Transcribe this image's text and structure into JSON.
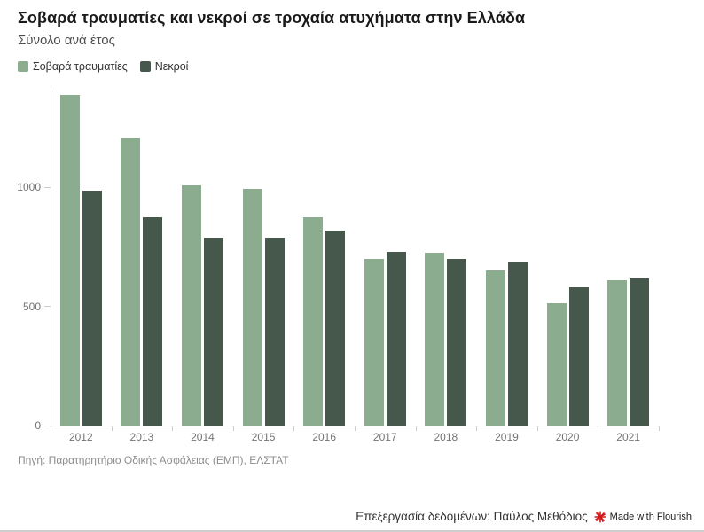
{
  "header": {
    "title": "Σοβαρά τραυματίες και νεκροί σε τροχαία ατυχήματα στην Ελλάδα",
    "subtitle": "Σύνολο ανά έτος"
  },
  "chart_data": {
    "type": "bar",
    "categories": [
      "2012",
      "2013",
      "2014",
      "2015",
      "2016",
      "2017",
      "2018",
      "2019",
      "2020",
      "2021"
    ],
    "series": [
      {
        "key": "serious-injuries",
        "name": "Σοβαρά τραυματίες",
        "color": "#8BAC8E",
        "values": [
          1390,
          1205,
          1010,
          995,
          875,
          700,
          725,
          650,
          515,
          610
        ]
      },
      {
        "key": "deaths",
        "name": "Νεκροί",
        "color": "#46584B",
        "values": [
          985,
          875,
          790,
          790,
          820,
          730,
          700,
          685,
          580,
          620
        ]
      }
    ],
    "title": "Σοβαρά τραυματίες και νεκροί σε τροχαία ατυχήματα στην Ελλάδα",
    "subtitle": "Σύνολο ανά έτος",
    "xlabel": "",
    "ylabel": "",
    "yticks": [
      0,
      500,
      1000
    ],
    "ylim": [
      0,
      1415
    ],
    "grid": false,
    "legend_position": "top-left",
    "axis_color": "#cccccc",
    "tick_text_color": "#737373"
  },
  "footer": {
    "source": "Πηγή: Παρατηρητήριο Οδικής Ασφάλειας (ΕΜΠ), ΕΛΣΤΑΤ",
    "credit": "Επεξεργασία δεδομένων: Παύλος Μεθόδιος",
    "flourish_label": "Made with Flourish",
    "flourish_red": "#d21a1a"
  }
}
